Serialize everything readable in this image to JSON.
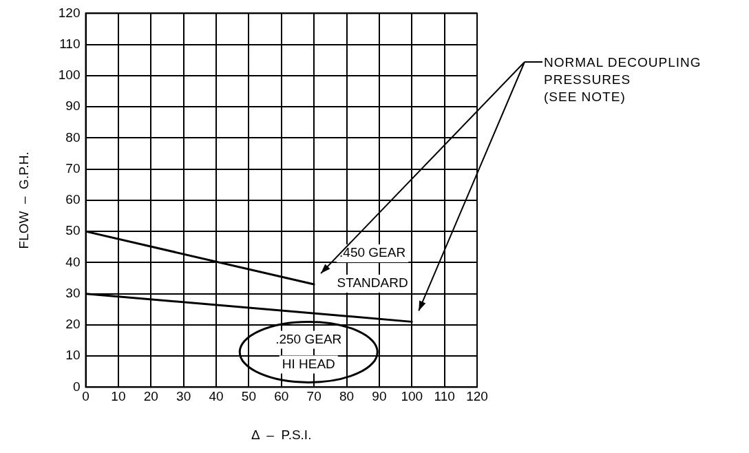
{
  "chart_data": {
    "type": "line",
    "xlabel": "Δ  –  P.S.I.",
    "ylabel": "FLOW  –  G.P.H.",
    "xlim": [
      0,
      120
    ],
    "xticks": [
      0,
      10,
      20,
      30,
      40,
      50,
      60,
      70,
      80,
      90,
      100,
      110,
      120
    ],
    "ylim": [
      0,
      120
    ],
    "yticks": [
      0,
      10,
      20,
      30,
      40,
      50,
      60,
      70,
      80,
      90,
      100,
      110,
      120
    ],
    "grid": true,
    "legend": false,
    "marker": "none",
    "line_style": "solid",
    "series": [
      {
        "color": "#000000",
        "x": [
          0,
          70
        ],
        "values": [
          50,
          33
        ]
      },
      {
        "color": "#000000",
        "x": [
          0,
          100
        ],
        "values": [
          30,
          21
        ]
      }
    ],
    "annotations": [
      ".450 GEAR",
      "STANDARD",
      ".250 GEAR",
      "HI HEAD",
      "NORMAL DECOUPLING",
      "PRESSURES",
      "(SEE NOTE)"
    ]
  }
}
